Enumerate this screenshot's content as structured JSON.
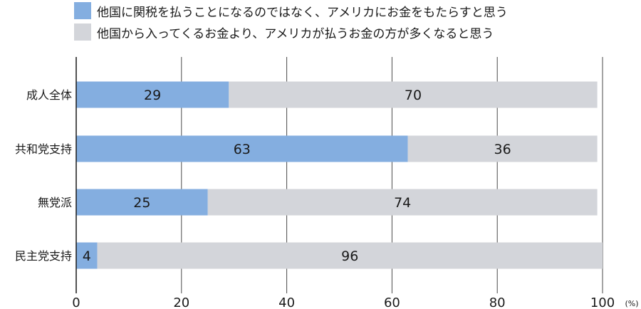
{
  "chart_data": {
    "type": "bar",
    "orientation": "horizontal",
    "stacked": true,
    "categories": [
      "成人全体",
      "共和党支持",
      "無党派",
      "民主党支持"
    ],
    "series": [
      {
        "name": "他国に関税を払うことになるのではなく、アメリカにお金をもたらすと思う",
        "values": [
          29,
          63,
          25,
          4
        ],
        "color": "#84aee0"
      },
      {
        "name": "他国から入ってくるお金より、アメリカが払うお金の方が多くなると思う",
        "values": [
          70,
          36,
          74,
          96
        ],
        "color": "#d3d5da"
      }
    ],
    "xlim": [
      0,
      100
    ],
    "xticks": [
      "0",
      "20",
      "40",
      "60",
      "80",
      "100"
    ],
    "unit": "(%)",
    "grid": true,
    "legend_position": "top-left"
  }
}
